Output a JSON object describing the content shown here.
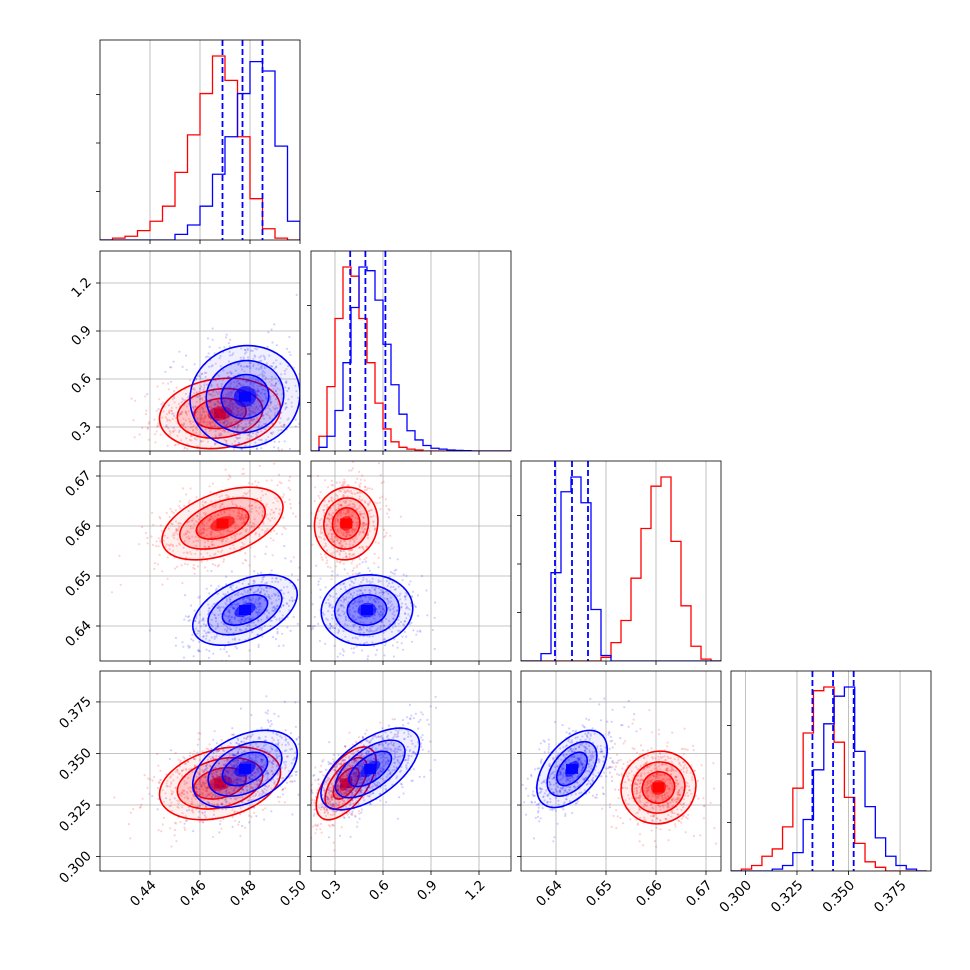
{
  "chart_data": {
    "type": "corner",
    "grid": true,
    "colors": {
      "series_a": "#0000ff",
      "series_b": "#ff0000"
    },
    "parameters": [
      {
        "ticks": [
          "0.44",
          "0.46",
          "0.48",
          "0.50"
        ],
        "range": [
          0.42,
          0.5
        ]
      },
      {
        "ticks": [
          "0.3",
          "0.6",
          "0.9",
          "1.2"
        ],
        "range": [
          0.15,
          1.4
        ]
      },
      {
        "ticks": [
          "0.64",
          "0.65",
          "0.66",
          "0.67"
        ],
        "range": [
          0.633,
          0.673
        ]
      },
      {
        "ticks": [
          "0.300",
          "0.325",
          "0.350",
          "0.375"
        ],
        "range": [
          0.293,
          0.39
        ]
      }
    ],
    "quantiles": [
      [
        0.469,
        0.477,
        0.485
      ],
      [
        0.395,
        0.49,
        0.615
      ],
      [
        0.6398,
        0.6432,
        0.6464
      ],
      [
        0.3325,
        0.3425,
        0.3525
      ]
    ],
    "histograms": [
      {
        "edges": [
          0.42,
          0.425,
          0.43,
          0.435,
          0.44,
          0.445,
          0.45,
          0.455,
          0.46,
          0.465,
          0.47,
          0.475,
          0.48,
          0.485,
          0.49,
          0.495,
          0.5
        ],
        "series_a": [
          0,
          0,
          0,
          0,
          0,
          0,
          3,
          8,
          18,
          35,
          55,
          78,
          95,
          90,
          50,
          10
        ],
        "series_b": [
          0,
          1,
          2,
          5,
          10,
          18,
          36,
          56,
          78,
          98,
          85,
          55,
          22,
          6,
          1,
          0
        ]
      },
      {
        "edges": [
          0.15,
          0.2,
          0.25,
          0.3,
          0.35,
          0.4,
          0.45,
          0.5,
          0.55,
          0.6,
          0.65,
          0.7,
          0.75,
          0.8,
          0.85,
          0.9,
          0.95,
          1.0,
          1.05,
          1.1,
          1.15,
          1.2,
          1.25,
          1.3,
          1.35,
          1.4
        ],
        "series_a": [
          0,
          2,
          8,
          22,
          48,
          78,
          100,
          98,
          82,
          58,
          36,
          20,
          11,
          6,
          3,
          1.5,
          1,
          0.5,
          0.3,
          0.2,
          0,
          0,
          0,
          0,
          0
        ],
        "series_b": [
          0,
          8,
          35,
          72,
          100,
          95,
          72,
          48,
          26,
          12,
          5,
          2,
          1,
          0.5,
          0,
          0,
          0,
          0,
          0,
          0,
          0,
          0,
          0,
          0,
          0
        ]
      },
      {
        "edges": [
          0.633,
          0.635,
          0.637,
          0.639,
          0.641,
          0.643,
          0.645,
          0.647,
          0.649,
          0.651,
          0.653,
          0.655,
          0.657,
          0.659,
          0.661,
          0.663,
          0.665,
          0.667,
          0.669,
          0.671,
          0.673
        ],
        "series_a": [
          0,
          0,
          4,
          48,
          92,
          100,
          86,
          28,
          3,
          0,
          0,
          0,
          0,
          0,
          0,
          0,
          0,
          0,
          0,
          0
        ],
        "series_b": [
          0,
          0,
          0,
          0,
          0,
          0,
          0,
          0,
          2,
          10,
          22,
          45,
          72,
          95,
          100,
          65,
          30,
          8,
          1,
          0
        ]
      },
      {
        "edges": [
          0.293,
          0.298,
          0.303,
          0.308,
          0.313,
          0.318,
          0.323,
          0.328,
          0.333,
          0.338,
          0.343,
          0.348,
          0.353,
          0.358,
          0.363,
          0.368,
          0.373,
          0.378,
          0.383,
          0.388
        ],
        "series_a": [
          0,
          0,
          0,
          0,
          1,
          3,
          10,
          28,
          55,
          80,
          95,
          100,
          65,
          35,
          18,
          8,
          3,
          1,
          0
        ],
        "series_b": [
          0,
          1,
          3,
          8,
          12,
          24,
          45,
          75,
          98,
          100,
          70,
          40,
          15,
          5,
          2,
          0,
          0,
          0,
          0
        ]
      }
    ],
    "joint": [
      {
        "row": 1,
        "col": 0,
        "series_a": {
          "mean": [
            0.478,
            0.49
          ],
          "sd": [
            0.01,
            0.145
          ],
          "rho": 0.05
        },
        "series_b": {
          "mean": [
            0.468,
            0.385
          ],
          "sd": [
            0.011,
            0.1
          ],
          "rho": 0.15
        }
      },
      {
        "row": 2,
        "col": 0,
        "series_a": {
          "mean": [
            0.478,
            0.6432
          ],
          "sd": [
            0.0095,
            0.0032
          ],
          "rho": 0.45
        },
        "series_b": {
          "mean": [
            0.469,
            0.6605
          ],
          "sd": [
            0.011,
            0.0033
          ],
          "rho": 0.45
        }
      },
      {
        "row": 2,
        "col": 1,
        "series_a": {
          "mean": [
            0.5,
            0.6432
          ],
          "sd": [
            0.13,
            0.0032
          ],
          "rho": 0.05
        },
        "series_b": {
          "mean": [
            0.37,
            0.6605
          ],
          "sd": [
            0.09,
            0.0033
          ],
          "rho": 0.05
        }
      },
      {
        "row": 3,
        "col": 0,
        "series_a": {
          "mean": [
            0.478,
            0.3425
          ],
          "sd": [
            0.0095,
            0.0085
          ],
          "rho": 0.4
        },
        "series_b": {
          "mean": [
            0.468,
            0.3355
          ],
          "sd": [
            0.011,
            0.008
          ],
          "rho": 0.3
        }
      },
      {
        "row": 3,
        "col": 1,
        "series_a": {
          "mean": [
            0.52,
            0.3425
          ],
          "sd": [
            0.14,
            0.009
          ],
          "rho": 0.6
        },
        "series_b": {
          "mean": [
            0.37,
            0.3355
          ],
          "sd": [
            0.085,
            0.008
          ],
          "rho": 0.6
        }
      },
      {
        "row": 3,
        "col": 2,
        "series_a": {
          "mean": [
            0.6432,
            0.3425
          ],
          "sd": [
            0.0032,
            0.0085
          ],
          "rho": 0.5
        },
        "series_b": {
          "mean": [
            0.6605,
            0.3335
          ],
          "sd": [
            0.0034,
            0.008
          ],
          "rho": 0.05
        }
      }
    ]
  }
}
